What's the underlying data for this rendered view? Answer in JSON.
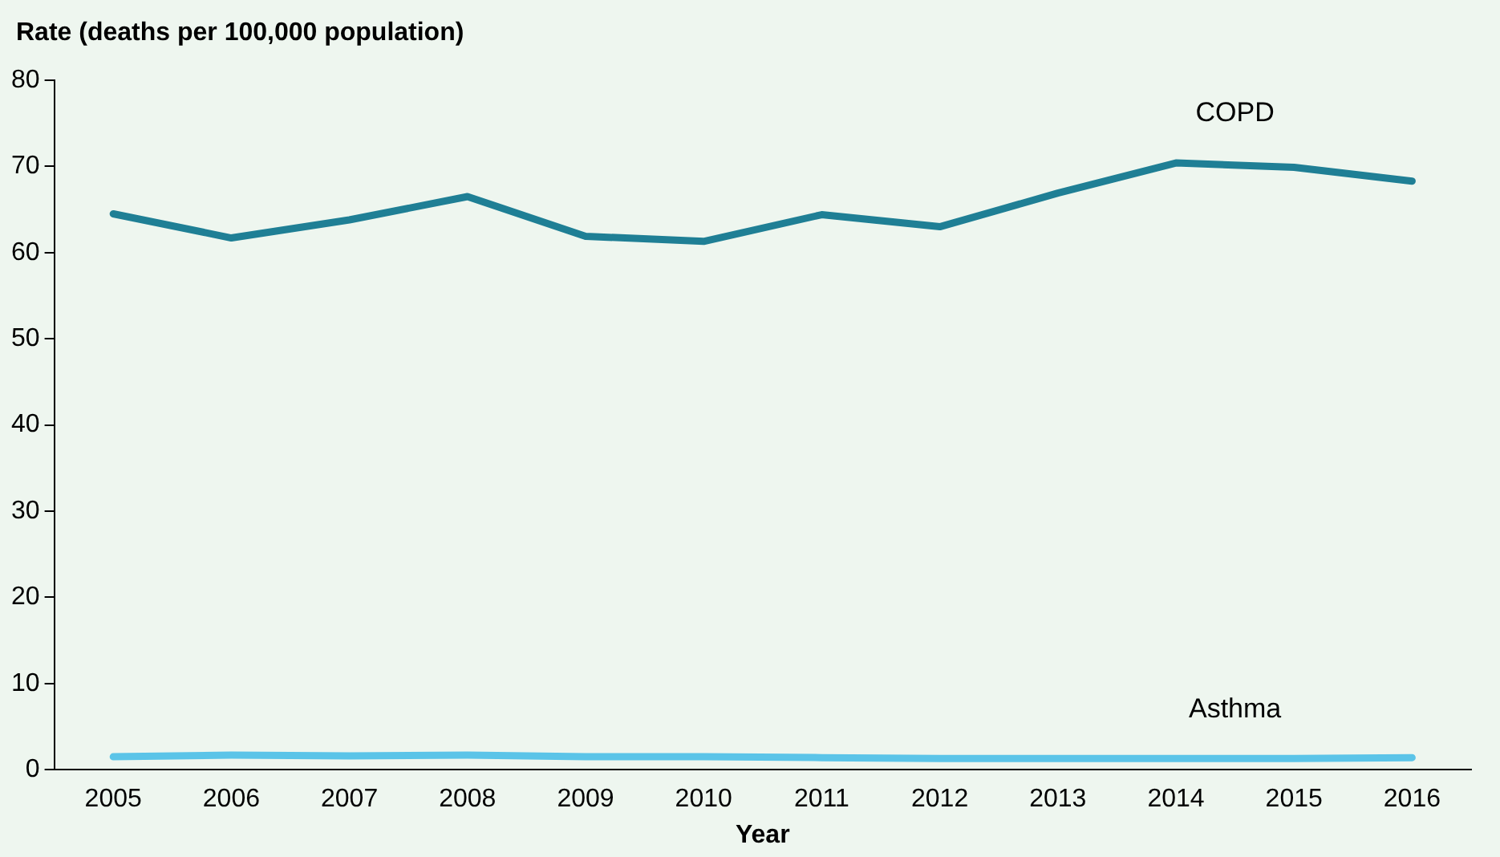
{
  "chart_data": {
    "type": "line",
    "ylabel": "Rate (deaths per 100,000 population)",
    "xlabel": "Year",
    "categories": [
      "2005",
      "2006",
      "2007",
      "2008",
      "2009",
      "2010",
      "2011",
      "2012",
      "2013",
      "2014",
      "2015",
      "2016"
    ],
    "series": [
      {
        "name": "COPD",
        "color": "#1f7f95",
        "values": [
          64.5,
          61.7,
          63.8,
          66.5,
          61.9,
          61.3,
          64.4,
          63.0,
          66.9,
          70.4,
          69.9,
          68.3
        ]
      },
      {
        "name": "Asthma",
        "color": "#5bc4e8",
        "values": [
          1.5,
          1.7,
          1.6,
          1.7,
          1.5,
          1.5,
          1.4,
          1.3,
          1.3,
          1.3,
          1.3,
          1.4
        ]
      }
    ],
    "ylim": [
      0,
      80
    ],
    "yticks": [
      0,
      10,
      20,
      30,
      40,
      50,
      60,
      70,
      80
    ],
    "grid": false,
    "legend": false,
    "marker": "none",
    "line_style": "solid"
  }
}
